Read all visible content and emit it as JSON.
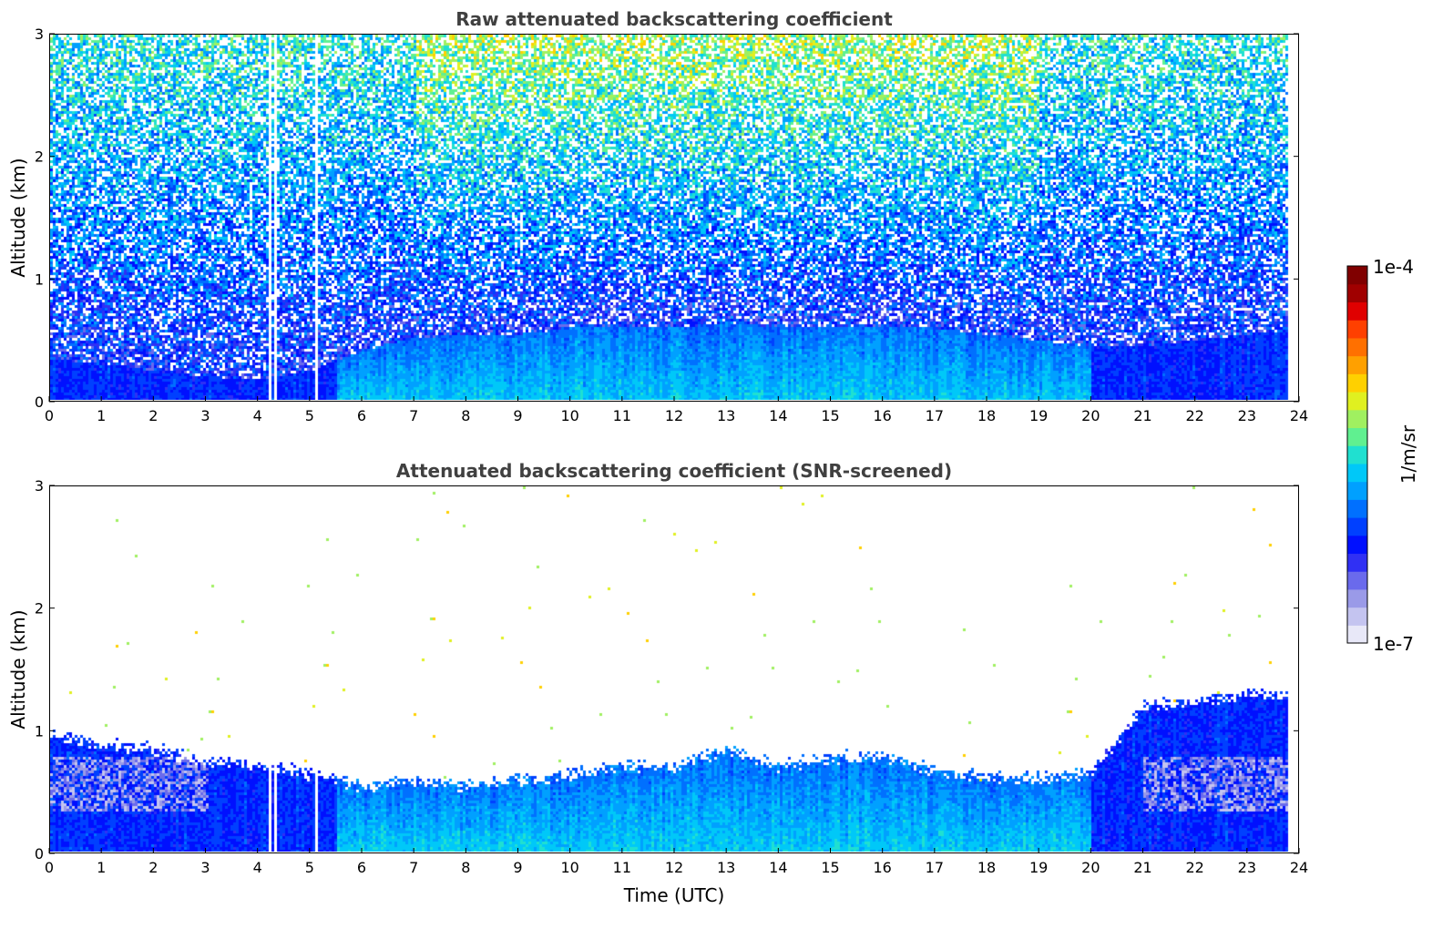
{
  "chart_data": [
    {
      "type": "heatmap",
      "title": "Raw attenuated backscattering coefficient",
      "xlabel": "",
      "ylabel": "Altitude (km)",
      "xlim": [
        0,
        24
      ],
      "ylim": [
        0,
        3
      ],
      "xticks": [
        "0",
        "1",
        "2",
        "3",
        "4",
        "5",
        "6",
        "7",
        "8",
        "9",
        "10",
        "11",
        "12",
        "13",
        "14",
        "15",
        "16",
        "17",
        "18",
        "19",
        "20",
        "21",
        "22",
        "23",
        "24"
      ],
      "yticks": [
        "0",
        "1",
        "2",
        "3"
      ],
      "data_end_hour": 23.8,
      "gaps_hours": [
        4.2,
        4.3,
        5.1
      ],
      "boundary_layer_top_km": [
        [
          0,
          0.35
        ],
        [
          1,
          0.3
        ],
        [
          2,
          0.25
        ],
        [
          3,
          0.2
        ],
        [
          4,
          0.18
        ],
        [
          5,
          0.25
        ],
        [
          6,
          0.42
        ],
        [
          7,
          0.52
        ],
        [
          8,
          0.55
        ],
        [
          9,
          0.55
        ],
        [
          10,
          0.6
        ],
        [
          11,
          0.62
        ],
        [
          12,
          0.6
        ],
        [
          13,
          0.65
        ],
        [
          14,
          0.6
        ],
        [
          15,
          0.6
        ],
        [
          16,
          0.62
        ],
        [
          17,
          0.6
        ],
        [
          18,
          0.55
        ],
        [
          19,
          0.5
        ],
        [
          20,
          0.45
        ],
        [
          21,
          0.45
        ],
        [
          22,
          0.5
        ],
        [
          23,
          0.55
        ],
        [
          23.8,
          0.58
        ]
      ],
      "noise_level": "high"
    },
    {
      "type": "heatmap",
      "title": "Attenuated backscattering coefficient (SNR-screened)",
      "xlabel": "Time (UTC)",
      "ylabel": "Altitude (km)",
      "xlim": [
        0,
        24
      ],
      "ylim": [
        0,
        3
      ],
      "xticks": [
        "0",
        "1",
        "2",
        "3",
        "4",
        "5",
        "6",
        "7",
        "8",
        "9",
        "10",
        "11",
        "12",
        "13",
        "14",
        "15",
        "16",
        "17",
        "18",
        "19",
        "20",
        "21",
        "22",
        "23",
        "24"
      ],
      "yticks": [
        "0",
        "1",
        "2",
        "3"
      ],
      "data_end_hour": 23.8,
      "gaps_hours": [
        4.2,
        4.3,
        5.1
      ],
      "screened_top_km": [
        [
          0,
          0.95
        ],
        [
          1,
          0.9
        ],
        [
          2,
          0.85
        ],
        [
          3,
          0.75
        ],
        [
          4,
          0.72
        ],
        [
          5,
          0.65
        ],
        [
          6,
          0.55
        ],
        [
          7,
          0.6
        ],
        [
          8,
          0.55
        ],
        [
          9,
          0.6
        ],
        [
          10,
          0.65
        ],
        [
          11,
          0.72
        ],
        [
          12,
          0.7
        ],
        [
          13,
          0.85
        ],
        [
          14,
          0.72
        ],
        [
          15,
          0.78
        ],
        [
          16,
          0.8
        ],
        [
          17,
          0.68
        ],
        [
          18,
          0.62
        ],
        [
          19,
          0.62
        ],
        [
          20,
          0.65
        ],
        [
          21,
          1.2
        ],
        [
          22,
          1.25
        ],
        [
          23,
          1.3
        ],
        [
          23.8,
          1.3
        ]
      ],
      "noise_level": "low"
    }
  ],
  "colorbar": {
    "label": "1/m/sr",
    "max_label": "1e-4",
    "min_label": "1e-7",
    "colors": [
      "#e8e8f8",
      "#c4c4f0",
      "#9a9ae8",
      "#6a6aec",
      "#3030f4",
      "#0010ff",
      "#0040ff",
      "#0070ff",
      "#00a0ff",
      "#00c8f8",
      "#20e0d0",
      "#60f090",
      "#a0f060",
      "#e0f020",
      "#ffd000",
      "#ffa000",
      "#ff7000",
      "#ff4000",
      "#e00000",
      "#a00000",
      "#800000"
    ]
  }
}
